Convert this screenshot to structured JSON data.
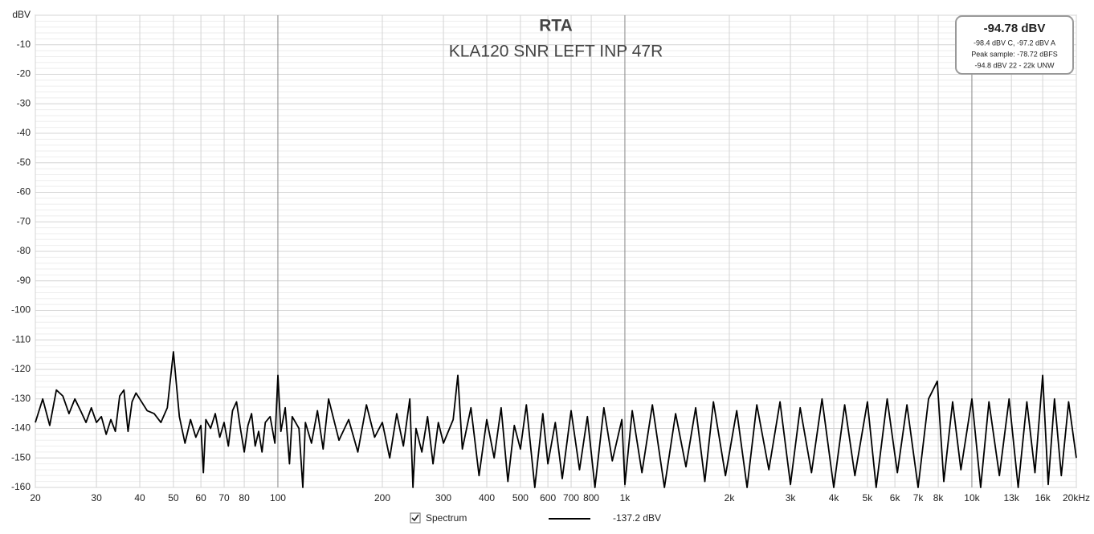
{
  "chart_data": {
    "type": "line",
    "title": "RTA",
    "subtitle": "KLA120 SNR LEFT INP 47R",
    "xscale": "log",
    "grid": true,
    "xlim": [
      20,
      20000
    ],
    "ylim": [
      -160,
      0
    ],
    "xticks": [
      20,
      30,
      40,
      50,
      60,
      70,
      80,
      100,
      200,
      300,
      400,
      500,
      600,
      700,
      800,
      {
        "value": 1000,
        "label": "1k"
      },
      {
        "value": 2000,
        "label": "2k"
      },
      {
        "value": 3000,
        "label": "3k"
      },
      {
        "value": 4000,
        "label": "4k"
      },
      {
        "value": 5000,
        "label": "5k"
      },
      {
        "value": 6000,
        "label": "6k"
      },
      {
        "value": 7000,
        "label": "7k"
      },
      {
        "value": 8000,
        "label": "8k"
      },
      {
        "value": 10000,
        "label": "10k"
      },
      {
        "value": 13000,
        "label": "13k"
      },
      {
        "value": 16000,
        "label": "16k"
      },
      {
        "value": 20000,
        "label": "20kHz"
      }
    ],
    "yticks": [
      -160,
      -150,
      -140,
      -130,
      -120,
      -110,
      -100,
      -90,
      -80,
      -70,
      -60,
      -50,
      -40,
      -30,
      -20,
      -10,
      {
        "value": 0,
        "label": "dBV"
      }
    ],
    "info_box": {
      "main": "-94.78 dBV",
      "lines": [
        "-98.4 dBV C, -97.2 dBV A",
        "Peak sample: -78.72 dBFS",
        "-94.8 dBV 22 - 22k UNW"
      ]
    },
    "x": [
      20,
      21,
      22,
      23,
      24,
      25,
      26,
      27,
      28,
      29,
      30,
      31,
      32,
      33,
      34,
      35,
      36,
      37,
      38,
      39,
      40,
      42,
      44,
      46,
      48,
      50,
      51,
      52,
      54,
      56,
      58,
      60,
      61,
      62,
      64,
      66,
      68,
      70,
      72,
      74,
      76,
      78,
      80,
      82,
      84,
      86,
      88,
      90,
      92,
      95,
      98,
      100,
      102,
      105,
      108,
      110,
      115,
      118,
      120,
      125,
      130,
      135,
      140,
      150,
      160,
      170,
      180,
      190,
      200,
      210,
      220,
      230,
      240,
      245,
      250,
      260,
      270,
      280,
      290,
      300,
      320,
      330,
      340,
      360,
      380,
      400,
      420,
      440,
      460,
      480,
      500,
      520,
      550,
      580,
      600,
      630,
      660,
      700,
      740,
      780,
      820,
      870,
      920,
      980,
      1000,
      1050,
      1120,
      1200,
      1300,
      1400,
      1500,
      1600,
      1700,
      1800,
      1950,
      2100,
      2250,
      2400,
      2600,
      2800,
      3000,
      3200,
      3450,
      3700,
      4000,
      4300,
      4600,
      5000,
      5300,
      5700,
      6100,
      6500,
      7000,
      7500,
      7950,
      8300,
      8800,
      9300,
      10000,
      10600,
      11200,
      12000,
      12800,
      13600,
      14400,
      15200,
      16000,
      16600,
      17300,
      18100,
      19000,
      20000
    ],
    "series": [
      {
        "name": "Spectrum",
        "legend_value": "-137.2 dBV",
        "color": "#000000",
        "values": [
          -138,
          -130,
          -139,
          -127,
          -129,
          -135,
          -130,
          -134,
          -138,
          -133,
          -138,
          -136,
          -142,
          -137,
          -141,
          -129,
          -127,
          -141,
          -131,
          -128,
          -130,
          -134,
          -135,
          -138,
          -133,
          -114,
          -125,
          -136,
          -145,
          -137,
          -143,
          -139,
          -155,
          -137,
          -140,
          -135,
          -143,
          -138,
          -146,
          -134,
          -131,
          -140,
          -148,
          -139,
          -135,
          -146,
          -141,
          -148,
          -138,
          -136,
          -145,
          -122,
          -141,
          -133,
          -152,
          -136,
          -140,
          -160,
          -138,
          -145,
          -134,
          -147,
          -130,
          -144,
          -137,
          -148,
          -132,
          -143,
          -138,
          -150,
          -135,
          -146,
          -130,
          -160,
          -140,
          -148,
          -136,
          -152,
          -138,
          -145,
          -137,
          -122,
          -147,
          -133,
          -156,
          -137,
          -150,
          -133,
          -158,
          -139,
          -147,
          -132,
          -160,
          -135,
          -152,
          -138,
          -157,
          -134,
          -154,
          -136,
          -160,
          -133,
          -151,
          -137,
          -159,
          -134,
          -155,
          -132,
          -160,
          -135,
          -153,
          -133,
          -158,
          -131,
          -156,
          -134,
          -160,
          -132,
          -154,
          -131,
          -159,
          -133,
          -155,
          -130,
          -160,
          -132,
          -156,
          -131,
          -160,
          -130,
          -155,
          -132,
          -160,
          -130,
          -124,
          -158,
          -131,
          -154,
          -130,
          -160,
          -131,
          -156,
          -130,
          -160,
          -131,
          -155,
          -122,
          -159,
          -130,
          -156,
          -131,
          -150
        ]
      }
    ]
  }
}
